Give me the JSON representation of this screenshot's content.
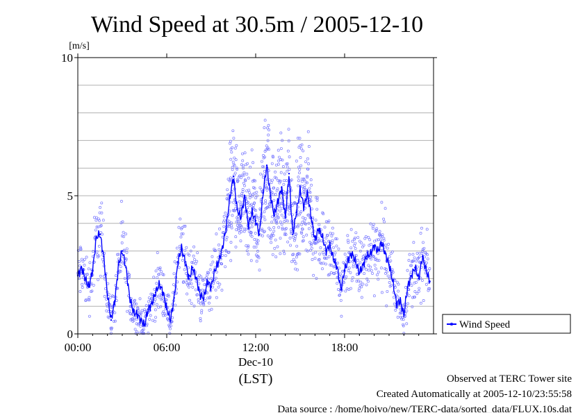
{
  "chart_data": {
    "type": "line",
    "title": "Wind Speed at 30.5m / 2005-12-10",
    "ylabel": "[m/s]",
    "xlabel": "(LST)",
    "date_label": "Dec-10",
    "ylim": [
      0,
      10
    ],
    "xlim_hours": [
      0,
      24
    ],
    "y_ticks": [
      {
        "value": 0,
        "label": "0"
      },
      {
        "value": 5,
        "label": "5"
      },
      {
        "value": 10,
        "label": "10"
      }
    ],
    "y_gridlines": [
      1,
      2,
      3,
      4,
      5,
      6,
      7,
      8,
      9
    ],
    "x_ticks": [
      {
        "hour": 0,
        "label": "00:00"
      },
      {
        "hour": 6,
        "label": "06:00"
      },
      {
        "hour": 12,
        "label": "12:00"
      },
      {
        "hour": 18,
        "label": "18:00"
      }
    ],
    "legend": {
      "label": "Wind Speed",
      "placement": "bottom-right, outside plot"
    },
    "grid": "horizontal",
    "colors": {
      "series": "#0000ff",
      "scatter": "#7777ff",
      "grid": "#b0b0b0"
    },
    "series": [
      {
        "name": "Wind Speed",
        "x_hours": [
          0.0,
          0.25,
          0.5,
          0.75,
          1.0,
          1.25,
          1.5,
          1.75,
          2.0,
          2.25,
          2.5,
          2.75,
          3.0,
          3.25,
          3.5,
          3.75,
          4.0,
          4.25,
          4.5,
          4.75,
          5.0,
          5.25,
          5.5,
          5.75,
          6.0,
          6.25,
          6.5,
          6.75,
          7.0,
          7.25,
          7.5,
          7.75,
          8.0,
          8.25,
          8.5,
          8.75,
          9.0,
          9.25,
          9.5,
          9.75,
          10.0,
          10.25,
          10.5,
          10.75,
          11.0,
          11.25,
          11.5,
          11.75,
          12.0,
          12.25,
          12.5,
          12.75,
          13.0,
          13.25,
          13.5,
          13.75,
          14.0,
          14.25,
          14.5,
          14.75,
          15.0,
          15.25,
          15.5,
          15.75,
          16.0,
          16.25,
          16.5,
          16.75,
          17.0,
          17.25,
          17.5,
          17.75,
          18.0,
          18.25,
          18.5,
          18.75,
          19.0,
          19.25,
          19.5,
          19.75,
          20.0,
          20.25,
          20.5,
          20.75,
          21.0,
          21.25,
          21.5,
          21.75,
          22.0,
          22.25,
          22.5,
          22.75,
          23.0,
          23.25,
          23.5,
          23.75
        ],
        "values": [
          2.1,
          2.4,
          2.0,
          1.7,
          2.3,
          3.5,
          3.6,
          2.8,
          1.4,
          0.5,
          1.2,
          2.5,
          3.0,
          2.4,
          1.3,
          0.8,
          0.7,
          0.5,
          0.3,
          0.9,
          1.1,
          1.5,
          1.8,
          1.5,
          0.9,
          0.5,
          1.3,
          2.6,
          3.1,
          2.6,
          2.0,
          2.4,
          2.0,
          1.4,
          1.3,
          1.9,
          1.7,
          2.3,
          2.6,
          3.1,
          3.8,
          4.9,
          5.7,
          4.5,
          4.2,
          5.0,
          3.9,
          4.4,
          4.1,
          3.6,
          5.1,
          6.1,
          5.0,
          4.3,
          4.8,
          5.3,
          4.2,
          5.8,
          3.6,
          4.4,
          5.2,
          4.6,
          5.1,
          4.2,
          3.4,
          3.8,
          3.5,
          3.0,
          3.2,
          2.7,
          2.4,
          1.6,
          2.3,
          2.7,
          2.9,
          2.6,
          2.2,
          2.5,
          2.8,
          2.9,
          3.2,
          3.0,
          3.3,
          2.9,
          2.5,
          1.9,
          1.1,
          1.2,
          0.7,
          1.7,
          2.1,
          2.4,
          2.0,
          2.8,
          2.3,
          1.9
        ]
      }
    ],
    "observation_note": "Observed at TERC Tower site",
    "created_note": "Created Automatically at 2005-12-10/23:55:58",
    "source_note": "Data source : /home/hoivo/new/TERC-data/sorted_data/FLUX.10s.dat"
  }
}
